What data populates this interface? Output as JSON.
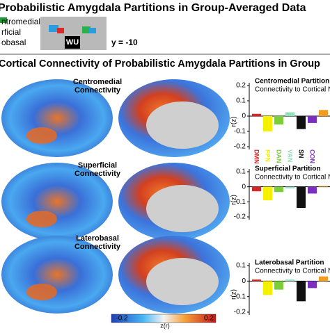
{
  "panel_a": {
    "title": "Probabilistic Amygdala Partitions in Group-Averaged Data",
    "legend": [
      "ntromedial",
      "rficial",
      "obasal"
    ],
    "image_label": "WU",
    "slice": "y = -10"
  },
  "panel_b": {
    "title": "Cortical Connectivity of Probabilistic Amygdala Partitions in Group",
    "rows": [
      [
        "Centromedial",
        "Connectivity"
      ],
      [
        "Superficial",
        "Connectivity"
      ],
      [
        "Laterobasal",
        "Connectivity"
      ]
    ],
    "colorbar": {
      "min_label": "-0.2",
      "max_label": "0.2",
      "label": "z(r)"
    }
  },
  "chart_data": [
    {
      "type": "bar",
      "title": "Centromedial Partition",
      "subtitle": "Connectivity to Cortical N",
      "y_label": "r(z)",
      "categories": [
        "DMN",
        "FPN",
        "DAN",
        "VAN",
        "SN",
        "CON",
        null
      ],
      "values": [
        0.015,
        -0.1,
        -0.055,
        0.025,
        -0.085,
        -0.045,
        0.04
      ],
      "colors": [
        "#d62728",
        "#f5f000",
        "#7ccd3c",
        "#8fe0b8",
        "#111111",
        "#7b2fbe",
        "#f39c1f"
      ],
      "ylim": [
        -0.2,
        0.2
      ],
      "yticks": [
        0.2,
        0.1,
        0,
        -0.1,
        -0.2
      ]
    },
    {
      "type": "bar",
      "title": "Superficial Partition",
      "subtitle": "Connectivity to Cortical N",
      "y_label": "r(z)",
      "categories": [
        null,
        null,
        null,
        null,
        null,
        null,
        null
      ],
      "values": [
        -0.03,
        -0.09,
        -0.035,
        -0.01,
        -0.14,
        -0.045,
        0.005
      ],
      "colors": [
        "#d62728",
        "#f5f000",
        "#7ccd3c",
        "#8fe0b8",
        "#111111",
        "#7b2fbe",
        "#f39c1f"
      ],
      "ylim": [
        -0.2,
        0.1
      ],
      "yticks": [
        0.1,
        0,
        -0.1,
        -0.2
      ]
    },
    {
      "type": "bar",
      "title": "Laterobasal Partition",
      "subtitle": "Connectivity to Cortical N",
      "y_label": "r(z)",
      "categories": [
        null,
        null,
        null,
        null,
        null,
        null,
        null
      ],
      "values": [
        0.01,
        -0.09,
        -0.055,
        0.01,
        -0.13,
        -0.045,
        0.03
      ],
      "colors": [
        "#d62728",
        "#f5f000",
        "#7ccd3c",
        "#8fe0b8",
        "#111111",
        "#7b2fbe",
        "#f39c1f"
      ],
      "ylim": [
        -0.2,
        0.1
      ],
      "yticks": [
        0.1,
        0,
        -0.1,
        -0.2
      ]
    }
  ]
}
